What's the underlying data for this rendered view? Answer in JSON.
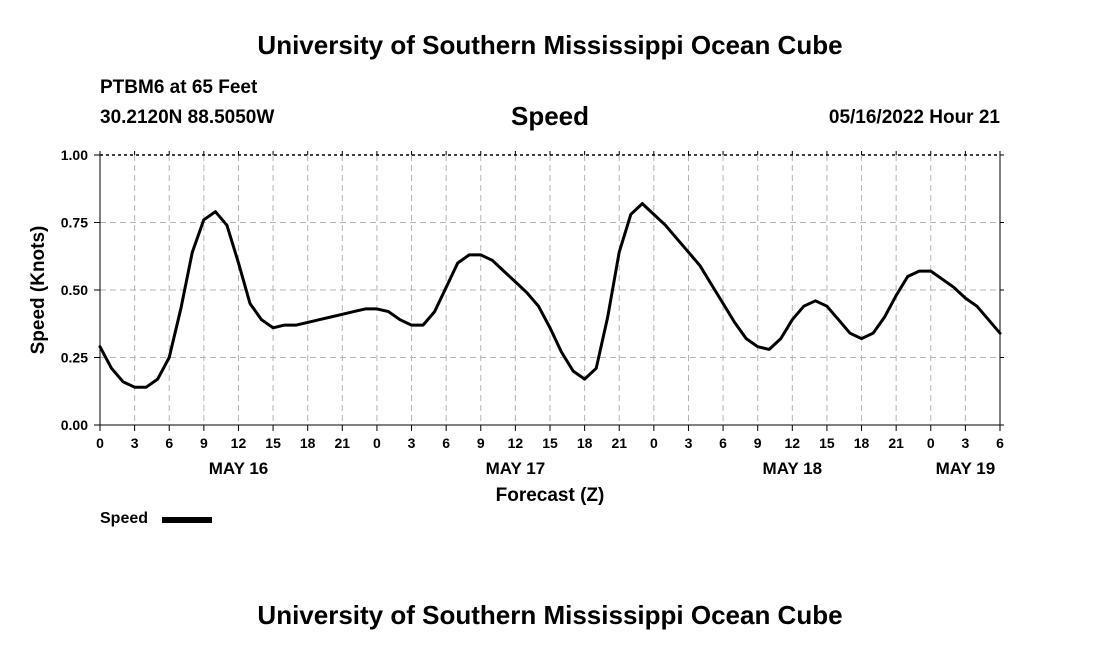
{
  "header": {
    "title": "University of Southern Mississippi Ocean Cube",
    "station": "PTBM6 at 65 Feet",
    "coordinates": "30.2120N  88.5050W",
    "timestamp": "05/16/2022 Hour 21"
  },
  "footer": {
    "title": "University of Southern Mississippi Ocean Cube"
  },
  "chart_data": {
    "type": "line",
    "title": "Speed",
    "xlabel": "Forecast (Z)",
    "ylabel": "Speed (Knots)",
    "ylim": [
      0,
      1
    ],
    "y_ticks": [
      "0.00",
      "0.25",
      "0.50",
      "0.75",
      "1.00"
    ],
    "x_range_hours": [
      0,
      78
    ],
    "x_ticks": [
      "0",
      "3",
      "6",
      "9",
      "12",
      "15",
      "18",
      "21",
      "0",
      "3",
      "6",
      "9",
      "12",
      "15",
      "18",
      "21",
      "0",
      "3",
      "6",
      "9",
      "12",
      "15",
      "18",
      "21",
      "0",
      "3",
      "6"
    ],
    "date_labels": [
      {
        "label": "MAY 16",
        "hour": 12
      },
      {
        "label": "MAY 17",
        "hour": 36
      },
      {
        "label": "MAY 18",
        "hour": 60
      },
      {
        "label": "MAY 19",
        "hour": 75
      }
    ],
    "grid": true,
    "legend": {
      "position": "bottom-left",
      "entries": [
        "Speed"
      ]
    },
    "series": [
      {
        "name": "Speed",
        "color": "#000000",
        "x": [
          0,
          1,
          2,
          3,
          4,
          5,
          6,
          7,
          8,
          9,
          10,
          11,
          12,
          13,
          14,
          15,
          16,
          17,
          18,
          19,
          20,
          21,
          22,
          23,
          24,
          25,
          26,
          27,
          28,
          29,
          30,
          31,
          32,
          33,
          34,
          35,
          36,
          37,
          38,
          39,
          40,
          41,
          42,
          43,
          44,
          45,
          46,
          47,
          48,
          49,
          50,
          51,
          52,
          53,
          54,
          55,
          56,
          57,
          58,
          59,
          60,
          61,
          62,
          63,
          64,
          65,
          66,
          67,
          68,
          69,
          70,
          71,
          72,
          73,
          74,
          75,
          76,
          77,
          78
        ],
        "values": [
          0.29,
          0.21,
          0.16,
          0.14,
          0.14,
          0.17,
          0.25,
          0.43,
          0.64,
          0.76,
          0.79,
          0.74,
          0.6,
          0.45,
          0.39,
          0.36,
          0.37,
          0.37,
          0.38,
          0.39,
          0.4,
          0.41,
          0.42,
          0.43,
          0.43,
          0.42,
          0.39,
          0.37,
          0.37,
          0.42,
          0.51,
          0.6,
          0.63,
          0.63,
          0.61,
          0.57,
          0.53,
          0.49,
          0.44,
          0.36,
          0.27,
          0.2,
          0.17,
          0.21,
          0.4,
          0.64,
          0.78,
          0.82,
          0.78,
          0.74,
          0.69,
          0.64,
          0.59,
          0.52,
          0.45,
          0.38,
          0.32,
          0.29,
          0.28,
          0.32,
          0.39,
          0.44,
          0.46,
          0.44,
          0.39,
          0.34,
          0.32,
          0.34,
          0.4,
          0.48,
          0.55,
          0.57,
          0.57,
          0.54,
          0.51,
          0.47,
          0.44,
          0.39,
          0.34
        ]
      }
    ]
  }
}
